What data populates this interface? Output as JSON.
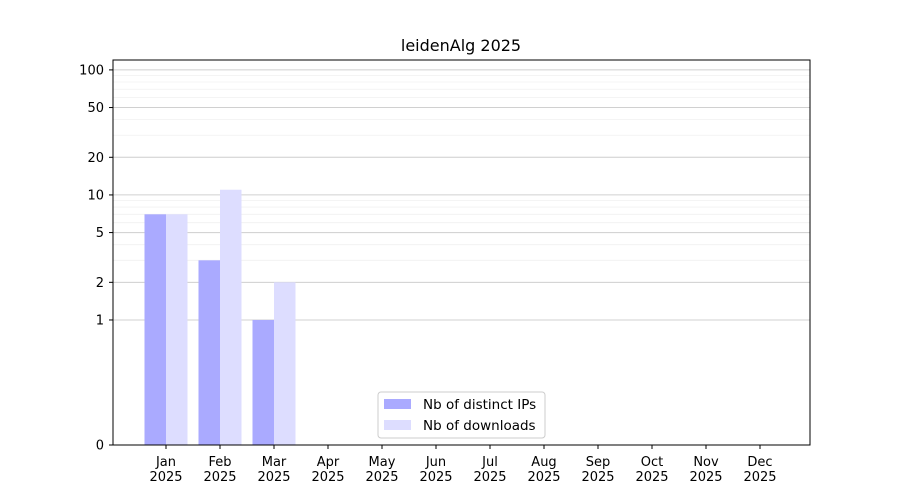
{
  "chart_data": {
    "type": "bar",
    "title": "leidenAlg 2025",
    "xlabel": "",
    "ylabel": "",
    "yscale": "symlog",
    "ylim": [
      0,
      120
    ],
    "y_ticks": [
      0,
      1,
      2,
      5,
      10,
      20,
      50,
      100
    ],
    "grid": "horizontal",
    "legend_position": "lower-center",
    "categories": [
      "Jan\n2025",
      "Feb\n2025",
      "Mar\n2025",
      "Apr\n2025",
      "May\n2025",
      "Jun\n2025",
      "Jul\n2025",
      "Aug\n2025",
      "Sep\n2025",
      "Oct\n2025",
      "Nov\n2025",
      "Dec\n2025"
    ],
    "series": [
      {
        "name": "Nb of distinct IPs",
        "color": "#aaaaff",
        "values": [
          7,
          3,
          1,
          0,
          0,
          0,
          0,
          0,
          0,
          0,
          0,
          0
        ]
      },
      {
        "name": "Nb of downloads",
        "color": "#ddddff",
        "values": [
          7,
          11,
          2,
          0,
          0,
          0,
          0,
          0,
          0,
          0,
          0,
          0
        ]
      }
    ]
  }
}
